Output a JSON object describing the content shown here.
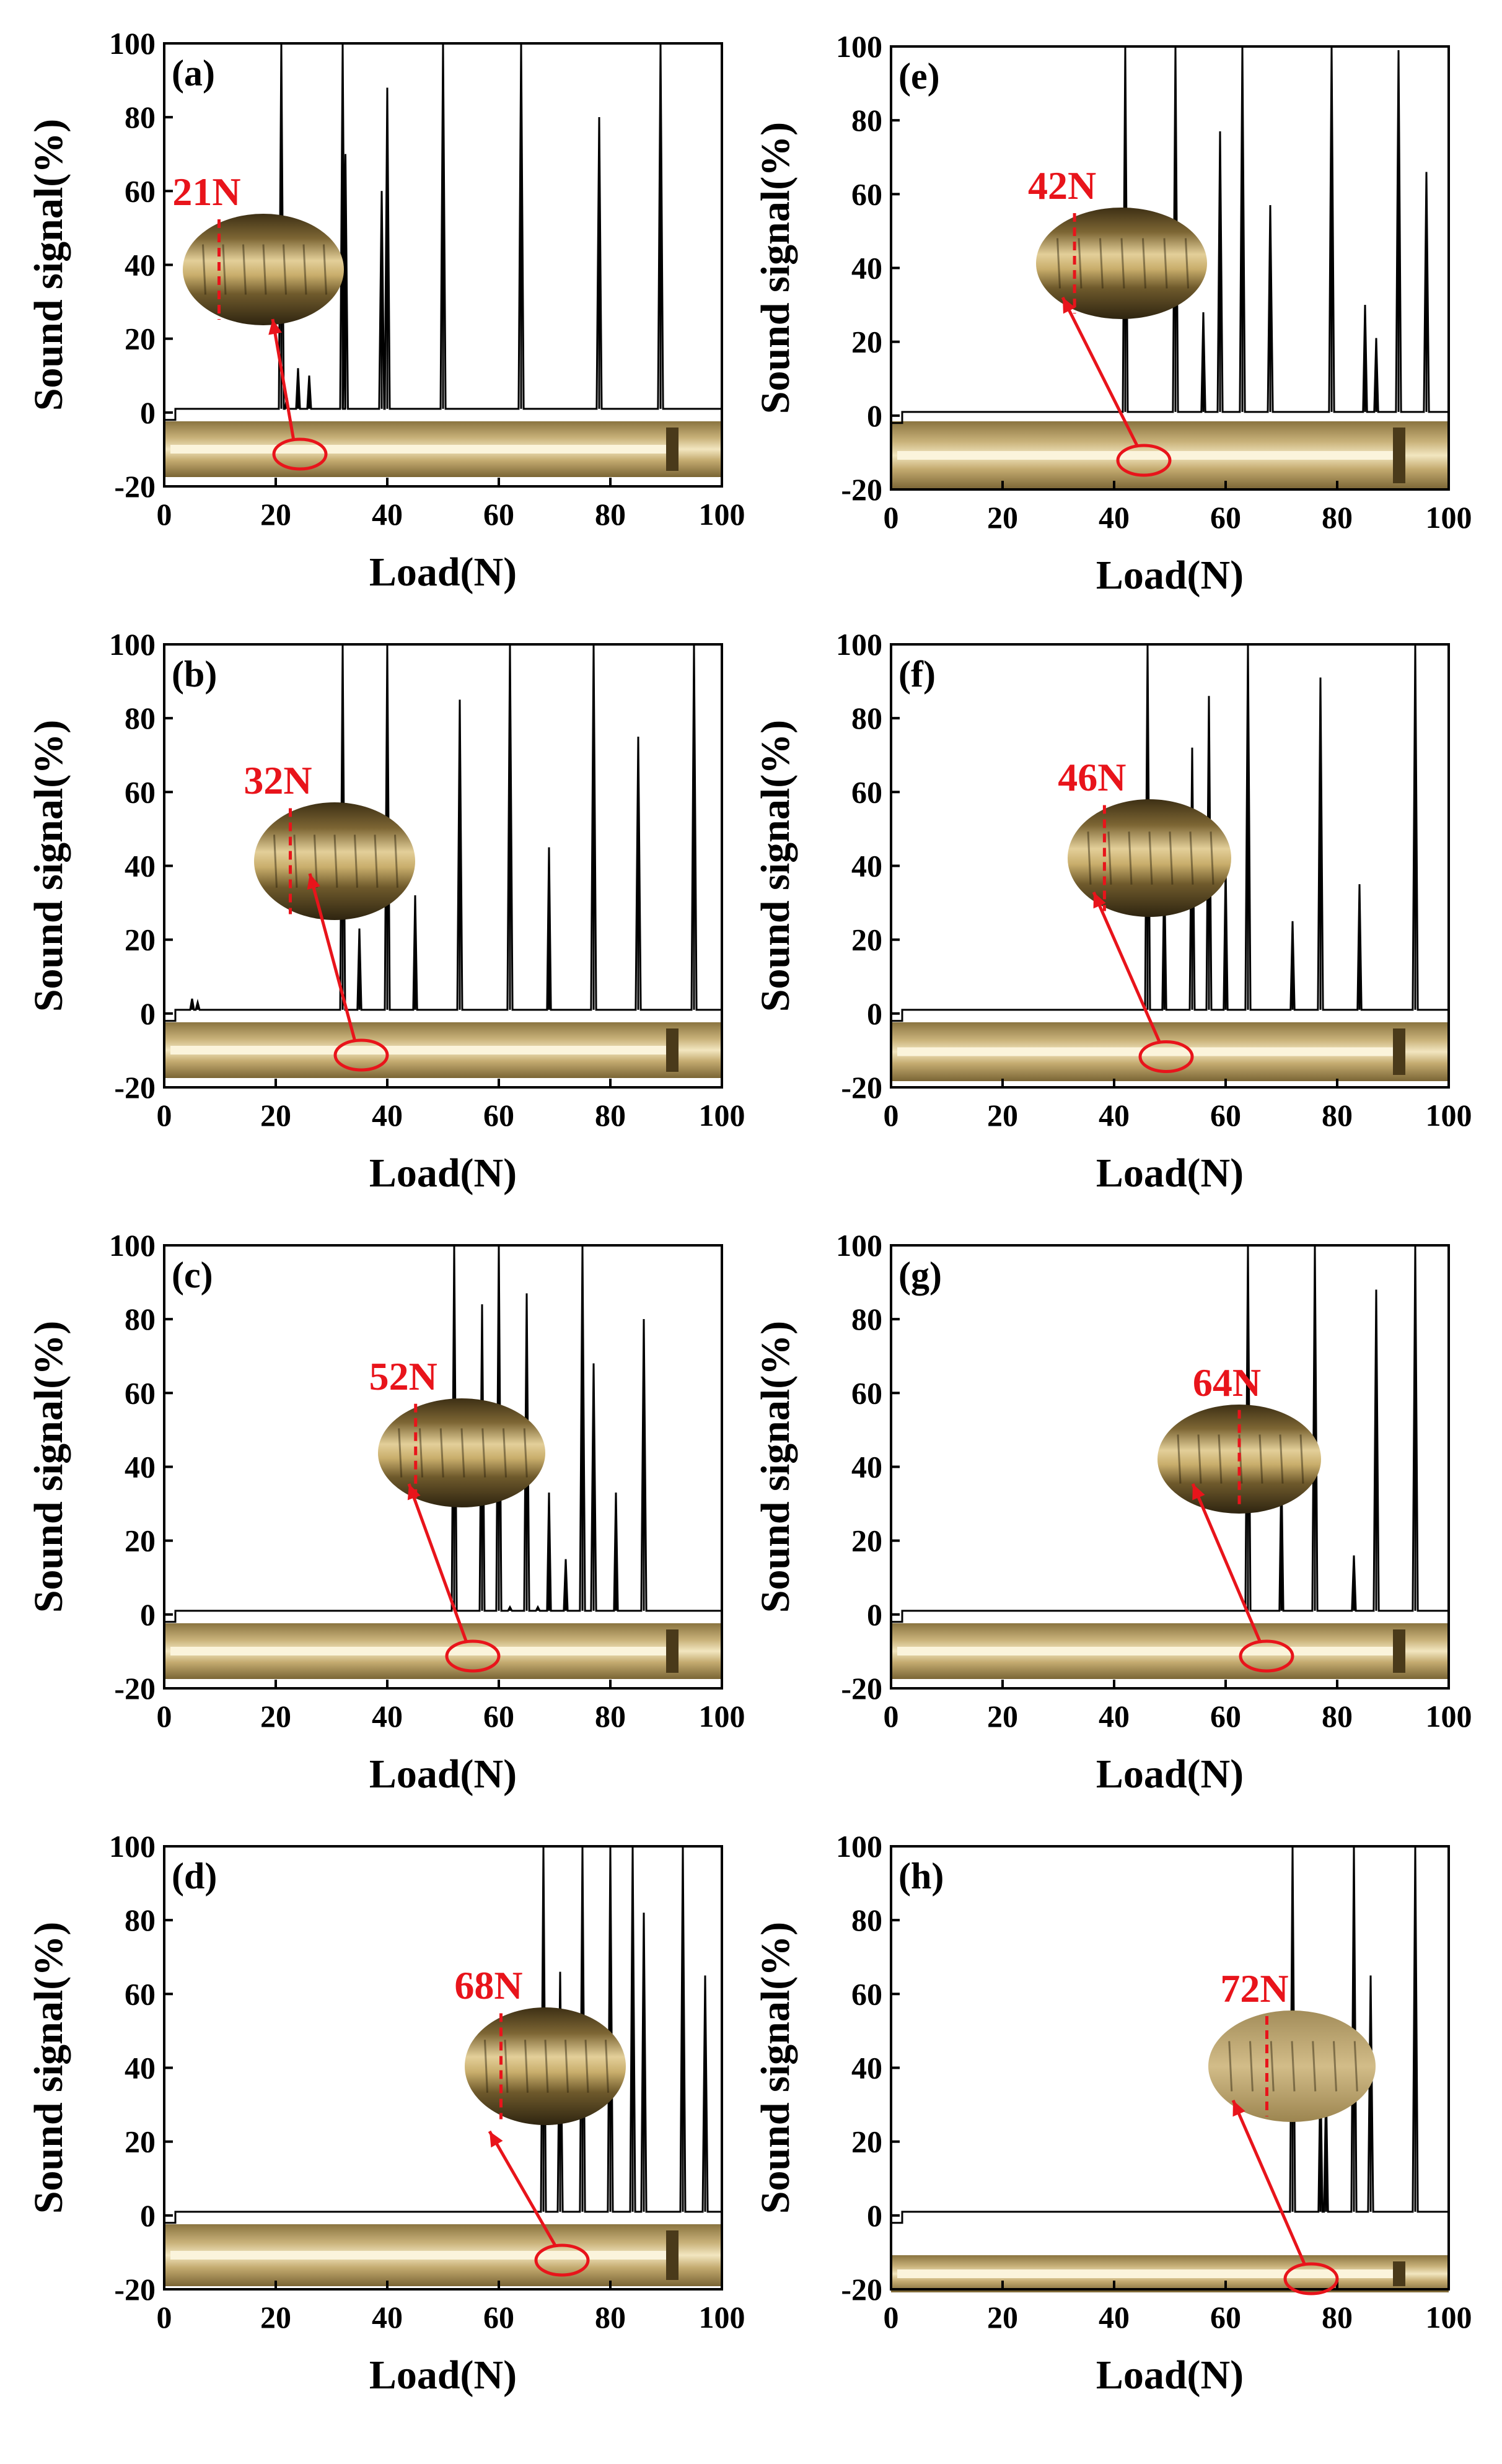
{
  "figure": {
    "colors": {
      "signal": "#000000",
      "annotation": "#e8141b",
      "background": "#ffffff",
      "track_light": "#d9c48f",
      "track_dark": "#6e5a30"
    }
  },
  "chart_data": [
    {
      "panel": "(a)",
      "type": "line",
      "xlabel": "Load(N)",
      "ylabel": "Sound signal(%)",
      "xlim": [
        0,
        100
      ],
      "ylim": [
        -20,
        100
      ],
      "xticks": [
        "0",
        "20",
        "40",
        "60",
        "80",
        "100"
      ],
      "yticks": [
        "-20",
        "0",
        "20",
        "40",
        "60",
        "80",
        "100"
      ],
      "onset_label": "21N",
      "onset_load": 21,
      "baseline": 1,
      "peaks": [
        {
          "x": 21,
          "y": 100
        },
        {
          "x": 22,
          "y": 4
        },
        {
          "x": 24,
          "y": 12
        },
        {
          "x": 26,
          "y": 10
        },
        {
          "x": 32,
          "y": 100
        },
        {
          "x": 32.5,
          "y": 70
        },
        {
          "x": 39,
          "y": 60
        },
        {
          "x": 40,
          "y": 88
        },
        {
          "x": 50,
          "y": 100
        },
        {
          "x": 64,
          "y": 100
        },
        {
          "x": 78,
          "y": 80
        },
        {
          "x": 89,
          "y": 100
        }
      ]
    },
    {
      "panel": "(b)",
      "type": "line",
      "xlabel": "Load(N)",
      "ylabel": "Sound signal(%)",
      "xlim": [
        0,
        100
      ],
      "ylim": [
        -20,
        100
      ],
      "xticks": [
        "0",
        "20",
        "40",
        "60",
        "80",
        "100"
      ],
      "yticks": [
        "-20",
        "0",
        "20",
        "40",
        "60",
        "80",
        "100"
      ],
      "onset_label": "32N",
      "onset_load": 32,
      "baseline": 1,
      "peaks": [
        {
          "x": 5,
          "y": 4
        },
        {
          "x": 6,
          "y": 3
        },
        {
          "x": 32,
          "y": 100
        },
        {
          "x": 35,
          "y": 23
        },
        {
          "x": 40,
          "y": 100
        },
        {
          "x": 45,
          "y": 32
        },
        {
          "x": 53,
          "y": 85
        },
        {
          "x": 62,
          "y": 100
        },
        {
          "x": 69,
          "y": 45
        },
        {
          "x": 77,
          "y": 100
        },
        {
          "x": 85,
          "y": 75
        },
        {
          "x": 95,
          "y": 100
        }
      ]
    },
    {
      "panel": "(c)",
      "type": "line",
      "xlabel": "Load(N)",
      "ylabel": "Sound signal(%)",
      "xlim": [
        0,
        100
      ],
      "ylim": [
        -20,
        100
      ],
      "xticks": [
        "0",
        "20",
        "40",
        "60",
        "80",
        "100"
      ],
      "yticks": [
        "-20",
        "0",
        "20",
        "40",
        "60",
        "80",
        "100"
      ],
      "onset_label": "52N",
      "onset_load": 52,
      "baseline": 1,
      "peaks": [
        {
          "x": 52,
          "y": 100
        },
        {
          "x": 57,
          "y": 84
        },
        {
          "x": 60,
          "y": 100
        },
        {
          "x": 62,
          "y": 2
        },
        {
          "x": 65,
          "y": 87
        },
        {
          "x": 67,
          "y": 2
        },
        {
          "x": 69,
          "y": 33
        },
        {
          "x": 72,
          "y": 15
        },
        {
          "x": 75,
          "y": 100
        },
        {
          "x": 77,
          "y": 68
        },
        {
          "x": 81,
          "y": 33
        },
        {
          "x": 86,
          "y": 80
        }
      ]
    },
    {
      "panel": "(d)",
      "type": "line",
      "xlabel": "Load(N)",
      "ylabel": "Sound signal(%)",
      "xlim": [
        0,
        100
      ],
      "ylim": [
        -20,
        100
      ],
      "xticks": [
        "0",
        "20",
        "40",
        "60",
        "80",
        "100"
      ],
      "yticks": [
        "-20",
        "0",
        "20",
        "40",
        "60",
        "80",
        "100"
      ],
      "onset_label": "68N",
      "onset_load": 68,
      "baseline": 1,
      "peaks": [
        {
          "x": 68,
          "y": 100
        },
        {
          "x": 71,
          "y": 66
        },
        {
          "x": 75,
          "y": 100
        },
        {
          "x": 80,
          "y": 100
        },
        {
          "x": 84,
          "y": 100
        },
        {
          "x": 86,
          "y": 82
        },
        {
          "x": 93,
          "y": 100
        },
        {
          "x": 97,
          "y": 65
        }
      ]
    },
    {
      "panel": "(e)",
      "type": "line",
      "xlabel": "Load(N)",
      "ylabel": "Sound signal(%)",
      "xlim": [
        0,
        100
      ],
      "ylim": [
        -20,
        100
      ],
      "xticks": [
        "0",
        "20",
        "40",
        "60",
        "80",
        "100"
      ],
      "yticks": [
        "-20",
        "0",
        "20",
        "40",
        "60",
        "80",
        "100"
      ],
      "onset_label": "42N",
      "onset_load": 42,
      "baseline": 1,
      "peaks": [
        {
          "x": 42,
          "y": 100
        },
        {
          "x": 51,
          "y": 100
        },
        {
          "x": 56,
          "y": 28
        },
        {
          "x": 59,
          "y": 77
        },
        {
          "x": 63,
          "y": 100
        },
        {
          "x": 68,
          "y": 57
        },
        {
          "x": 79,
          "y": 100
        },
        {
          "x": 85,
          "y": 30
        },
        {
          "x": 87,
          "y": 21
        },
        {
          "x": 91,
          "y": 99
        },
        {
          "x": 96,
          "y": 66
        }
      ]
    },
    {
      "panel": "(f)",
      "type": "line",
      "xlabel": "Load(N)",
      "ylabel": "Sound signal(%)",
      "xlim": [
        0,
        100
      ],
      "ylim": [
        -20,
        100
      ],
      "xticks": [
        "0",
        "20",
        "40",
        "60",
        "80",
        "100"
      ],
      "yticks": [
        "-20",
        "0",
        "20",
        "40",
        "60",
        "80",
        "100"
      ],
      "onset_label": "46N",
      "onset_load": 46,
      "baseline": 1,
      "peaks": [
        {
          "x": 46,
          "y": 100
        },
        {
          "x": 49,
          "y": 40
        },
        {
          "x": 54,
          "y": 72
        },
        {
          "x": 57,
          "y": 86
        },
        {
          "x": 60,
          "y": 40
        },
        {
          "x": 64,
          "y": 100
        },
        {
          "x": 72,
          "y": 25
        },
        {
          "x": 77,
          "y": 91
        },
        {
          "x": 84,
          "y": 35
        },
        {
          "x": 94,
          "y": 100
        }
      ]
    },
    {
      "panel": "(g)",
      "type": "line",
      "xlabel": "Load(N)",
      "ylabel": "Sound signal(%)",
      "xlim": [
        0,
        100
      ],
      "ylim": [
        -20,
        100
      ],
      "xticks": [
        "0",
        "20",
        "40",
        "60",
        "80",
        "100"
      ],
      "yticks": [
        "-20",
        "0",
        "20",
        "40",
        "60",
        "80",
        "100"
      ],
      "onset_label": "64N",
      "onset_load": 64,
      "baseline": 1,
      "peaks": [
        {
          "x": 64,
          "y": 100
        },
        {
          "x": 70,
          "y": 40
        },
        {
          "x": 76,
          "y": 100
        },
        {
          "x": 83,
          "y": 16
        },
        {
          "x": 87,
          "y": 88
        },
        {
          "x": 94,
          "y": 100
        }
      ]
    },
    {
      "panel": "(h)",
      "type": "line",
      "xlabel": "Load(N)",
      "ylabel": "Sound signal(%)",
      "xlim": [
        0,
        100
      ],
      "ylim": [
        -20,
        100
      ],
      "xticks": [
        "0",
        "20",
        "40",
        "60",
        "80",
        "100"
      ],
      "yticks": [
        "-20",
        "0",
        "20",
        "40",
        "60",
        "80",
        "100"
      ],
      "onset_label": "72N",
      "onset_load": 72,
      "baseline": 1,
      "peaks": [
        {
          "x": 72,
          "y": 100
        },
        {
          "x": 77,
          "y": 40
        },
        {
          "x": 78,
          "y": 35
        },
        {
          "x": 83,
          "y": 100
        },
        {
          "x": 86,
          "y": 65
        },
        {
          "x": 94,
          "y": 100
        }
      ]
    }
  ]
}
